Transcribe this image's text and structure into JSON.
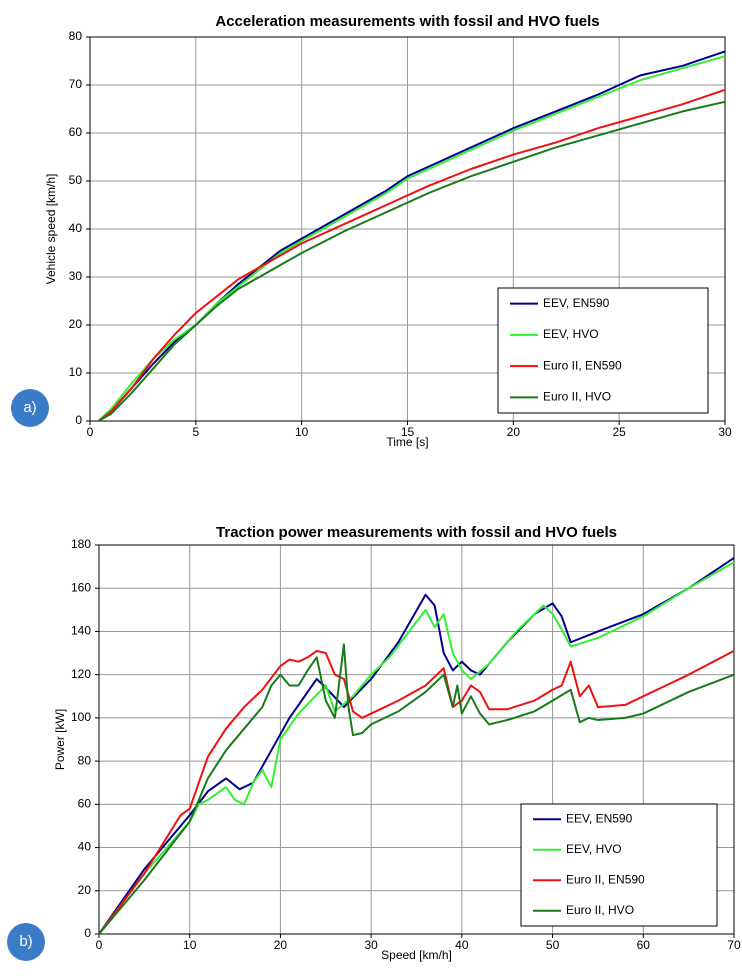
{
  "chart_data": [
    {
      "type": "line",
      "title": "Acceleration measurements with fossil and HVO fuels",
      "xlabel": "Time [s]",
      "ylabel": "Vehicle speed [km/h]",
      "panel_label": "a)",
      "xlim": [
        0,
        30
      ],
      "ylim": [
        0,
        80
      ],
      "xticks": [
        0,
        5,
        10,
        15,
        20,
        25,
        30
      ],
      "yticks": [
        0,
        10,
        20,
        30,
        40,
        50,
        60,
        70,
        80
      ],
      "grid": true,
      "legend": "lower right",
      "series": [
        {
          "name": "EEV, EN590",
          "color": "#00008b",
          "x": [
            0.4,
            1,
            2,
            3,
            4,
            5,
            6,
            7,
            8,
            9,
            10,
            12,
            14,
            15,
            16,
            18,
            20,
            22,
            24,
            26,
            28,
            30
          ],
          "values": [
            0,
            2,
            7,
            12,
            16.5,
            20,
            24.5,
            28.5,
            32,
            35.5,
            38,
            43,
            48,
            51,
            53,
            57,
            61,
            64.5,
            68,
            72,
            74,
            77
          ]
        },
        {
          "name": "EEV, HVO",
          "color": "#33ee33",
          "x": [
            0.4,
            1,
            2,
            3,
            4,
            5,
            6,
            7,
            8,
            9,
            10,
            12,
            14,
            15,
            16,
            18,
            20,
            22,
            24,
            26,
            28,
            30
          ],
          "values": [
            0,
            2.5,
            8,
            13,
            17,
            20,
            24.5,
            28,
            31.5,
            35,
            37.5,
            42.5,
            47.5,
            50.5,
            52.5,
            56.5,
            60.5,
            64,
            67.5,
            71,
            73.5,
            76
          ]
        },
        {
          "name": "Euro II, EN590",
          "color": "#ee1111",
          "x": [
            0.4,
            1,
            2,
            3,
            4,
            5,
            6,
            7,
            8,
            9,
            10,
            12,
            14,
            15,
            16,
            18,
            20,
            22,
            24,
            26,
            28,
            30
          ],
          "values": [
            0,
            2,
            7,
            13,
            18,
            22.5,
            26,
            29.5,
            32,
            34.5,
            37,
            41,
            45,
            47,
            49,
            52.5,
            55.5,
            58,
            61,
            63.5,
            66,
            69
          ]
        },
        {
          "name": "Euro II, HVO",
          "color": "#1a7a1a",
          "x": [
            0.4,
            1,
            2,
            3,
            4,
            5,
            6,
            7,
            8,
            9,
            10,
            12,
            14,
            15,
            16,
            18,
            20,
            22,
            24,
            26,
            28,
            30
          ],
          "values": [
            0,
            1.5,
            6,
            11,
            16,
            20,
            24,
            27.5,
            30,
            32.5,
            35,
            39.5,
            43.5,
            45.5,
            47.5,
            51,
            54,
            57,
            59.5,
            62,
            64.5,
            66.5
          ]
        }
      ]
    },
    {
      "type": "line",
      "title": "Traction power measurements with fossil and HVO fuels",
      "xlabel": "Speed [km/h]",
      "ylabel": "Power [kW]",
      "panel_label": "b)",
      "xlim": [
        0,
        70
      ],
      "ylim": [
        0,
        180
      ],
      "xticks": [
        0,
        10,
        20,
        30,
        40,
        50,
        60,
        70
      ],
      "yticks": [
        0,
        20,
        40,
        60,
        80,
        100,
        120,
        140,
        160,
        180
      ],
      "grid": true,
      "legend": "lower right",
      "series": [
        {
          "name": "EEV, EN590",
          "color": "#00008b",
          "x": [
            0,
            5,
            10,
            12,
            14,
            15.5,
            17,
            19,
            21,
            24,
            25,
            27,
            30,
            33,
            36,
            37,
            38,
            39,
            40,
            41,
            42,
            45,
            48,
            50,
            51,
            52,
            55,
            60,
            65,
            70
          ],
          "values": [
            0,
            30,
            55,
            66,
            72,
            67,
            70,
            85,
            100,
            118,
            114,
            105,
            118,
            135,
            157,
            152,
            130,
            122,
            126,
            122,
            120,
            135,
            148,
            153,
            147,
            135,
            140,
            148,
            160,
            174
          ]
        },
        {
          "name": "EEV, HVO",
          "color": "#33ee33",
          "x": [
            0,
            5,
            10,
            11,
            12,
            14,
            15,
            16,
            17,
            18,
            19,
            20,
            22,
            25,
            26,
            28,
            30,
            32,
            36,
            37,
            38,
            39,
            40,
            41,
            43,
            46,
            49,
            50,
            51,
            52,
            55,
            60,
            65,
            70
          ],
          "values": [
            0,
            28,
            52,
            60,
            62,
            68,
            62,
            60,
            70,
            76,
            68,
            90,
            102,
            115,
            103,
            110,
            120,
            128,
            150,
            142,
            148,
            130,
            122,
            118,
            125,
            140,
            152,
            148,
            141,
            133,
            137,
            147,
            160,
            172
          ]
        },
        {
          "name": "Euro II, EN590",
          "color": "#ee1111",
          "x": [
            0,
            5,
            9,
            10,
            11,
            12,
            14,
            16,
            18,
            20,
            21,
            22,
            23,
            24,
            25,
            26,
            27,
            28,
            29,
            30,
            33,
            36,
            38,
            39,
            40,
            41,
            42,
            43,
            45,
            48,
            50,
            51,
            52,
            53,
            54,
            55,
            58,
            60,
            65,
            70
          ],
          "values": [
            0,
            28,
            55,
            58,
            70,
            82,
            95,
            105,
            113,
            124,
            127,
            126,
            128,
            131,
            130,
            120,
            118,
            103,
            100,
            102,
            108,
            115,
            123,
            105,
            108,
            115,
            112,
            104,
            104,
            108,
            113,
            115,
            126,
            110,
            115,
            105,
            106,
            110,
            120,
            131
          ]
        },
        {
          "name": "Euro II, HVO",
          "color": "#1a7a1a",
          "x": [
            0,
            5,
            10,
            12,
            14,
            16,
            18,
            19,
            20,
            21,
            22,
            23,
            24,
            25,
            26,
            27,
            27.5,
            28,
            29,
            30,
            33,
            36,
            38,
            39,
            39.5,
            40,
            41,
            42,
            43,
            45,
            48,
            50,
            52,
            53,
            54,
            55,
            58,
            60,
            65,
            70
          ],
          "values": [
            0,
            25,
            52,
            72,
            85,
            95,
            105,
            115,
            120,
            115,
            115,
            122,
            128,
            108,
            100,
            134,
            105,
            92,
            93,
            97,
            103,
            112,
            120,
            105,
            115,
            102,
            110,
            102,
            97,
            99,
            103,
            108,
            113,
            98,
            100,
            99,
            100,
            102,
            112,
            120
          ]
        }
      ]
    }
  ]
}
